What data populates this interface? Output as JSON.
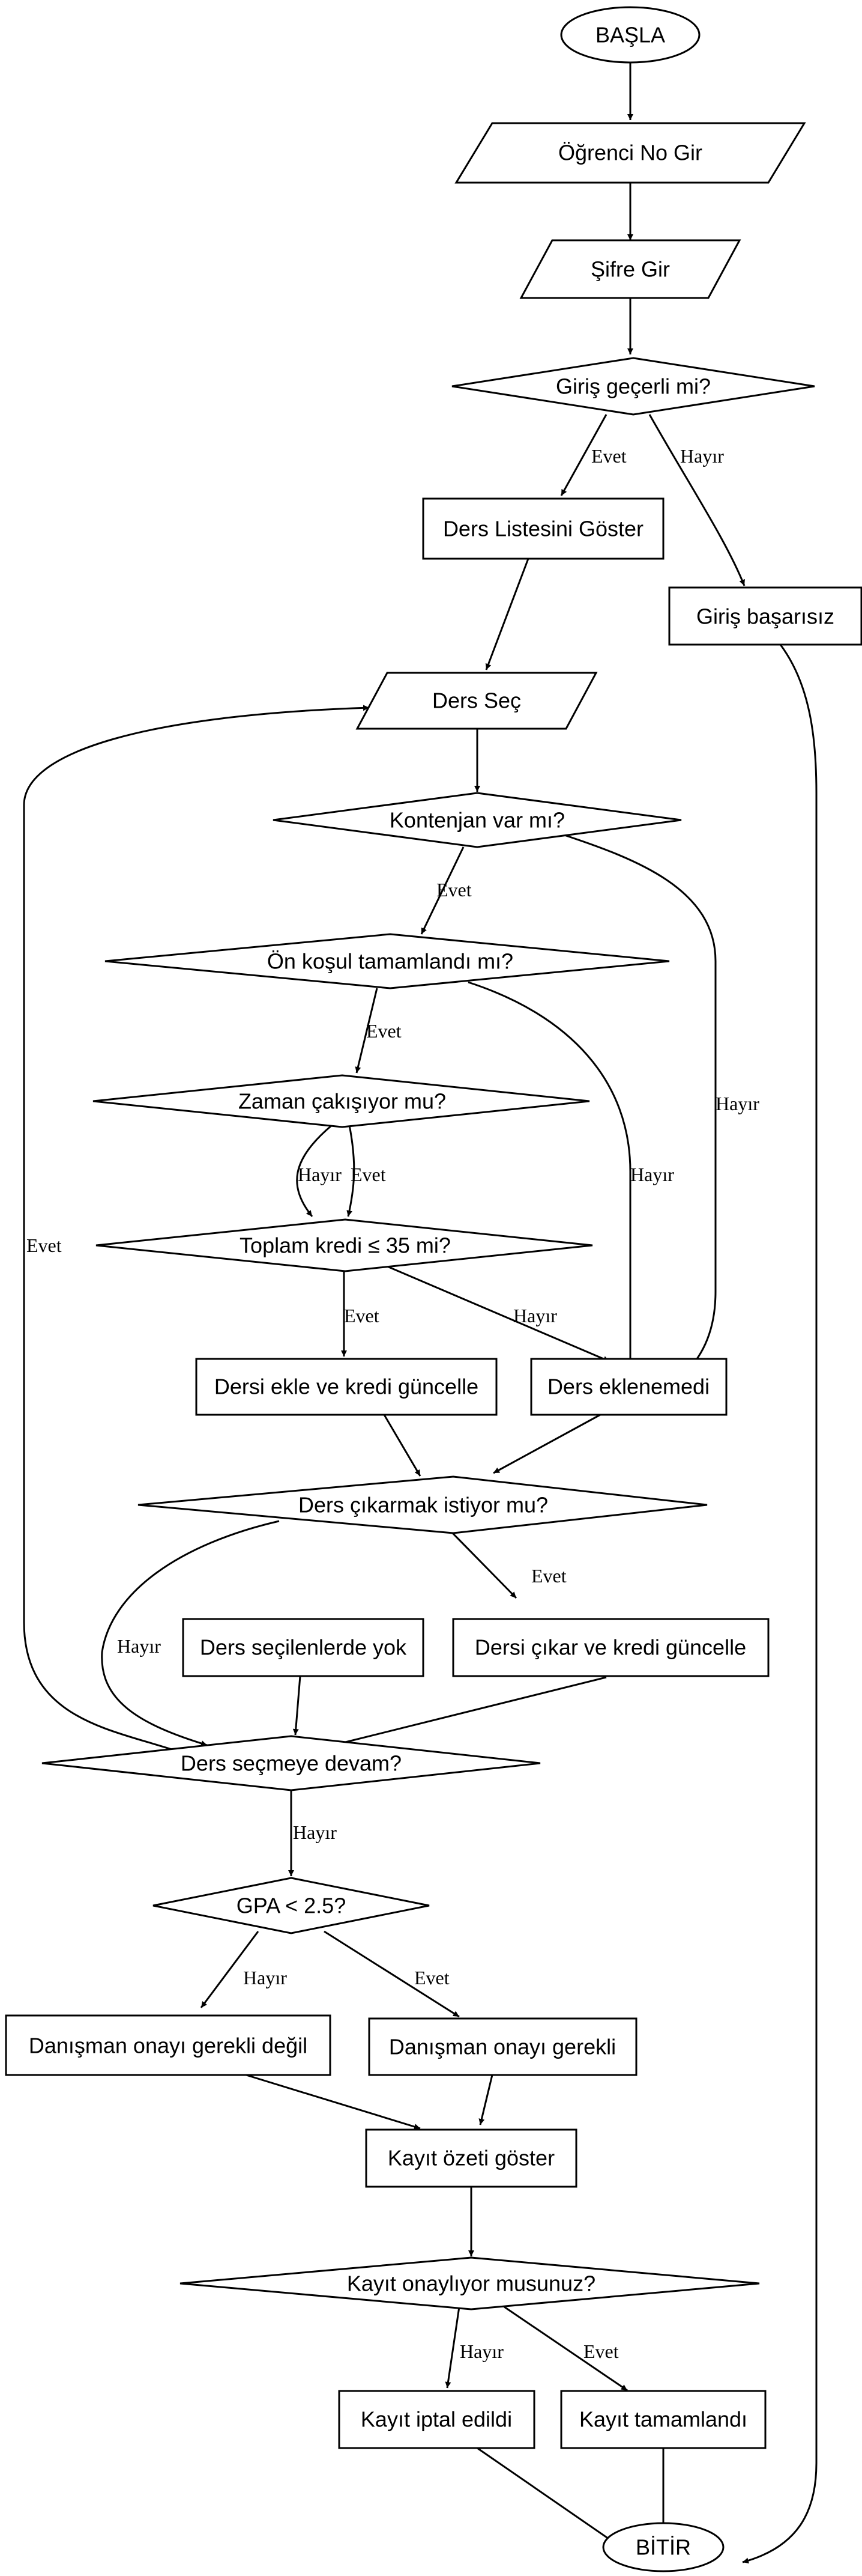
{
  "nodes": {
    "start": "BAŞLA",
    "student_no": "Öğrenci No Gir",
    "password": "Şifre Gir",
    "login_valid": "Giriş geçerli mi?",
    "course_list": "Ders Listesini Göster",
    "login_failed": "Giriş başarısız",
    "select_course": "Ders Seç",
    "quota": "Kontenjan var mı?",
    "prereq": "Ön koşul tamamlandı mı?",
    "conflict": "Zaman çakışıyor mu?",
    "credit_limit": "Toplam kredi ≤ 35 mi?",
    "add_course": "Dersi ekle ve kredi güncelle",
    "not_added": "Ders eklenemedi",
    "drop_question": "Ders çıkarmak istiyor mu?",
    "not_in_selected": "Ders seçilenlerde yok",
    "drop_course": "Dersi çıkar ve kredi güncelle",
    "continue_selecting": "Ders seçmeye devam?",
    "gpa_check": "GPA < 2.5?",
    "advisor_not_required": "Danışman onayı gerekli değil",
    "advisor_required": "Danışman onayı gerekli",
    "summary": "Kayıt özeti göster",
    "confirm": "Kayıt onaylıyor musunuz?",
    "cancelled": "Kayıt iptal edildi",
    "completed": "Kayıt tamamlandı",
    "end": "BİTİR"
  },
  "edge_labels": {
    "yes": "Evet",
    "no": "Hayır"
  }
}
